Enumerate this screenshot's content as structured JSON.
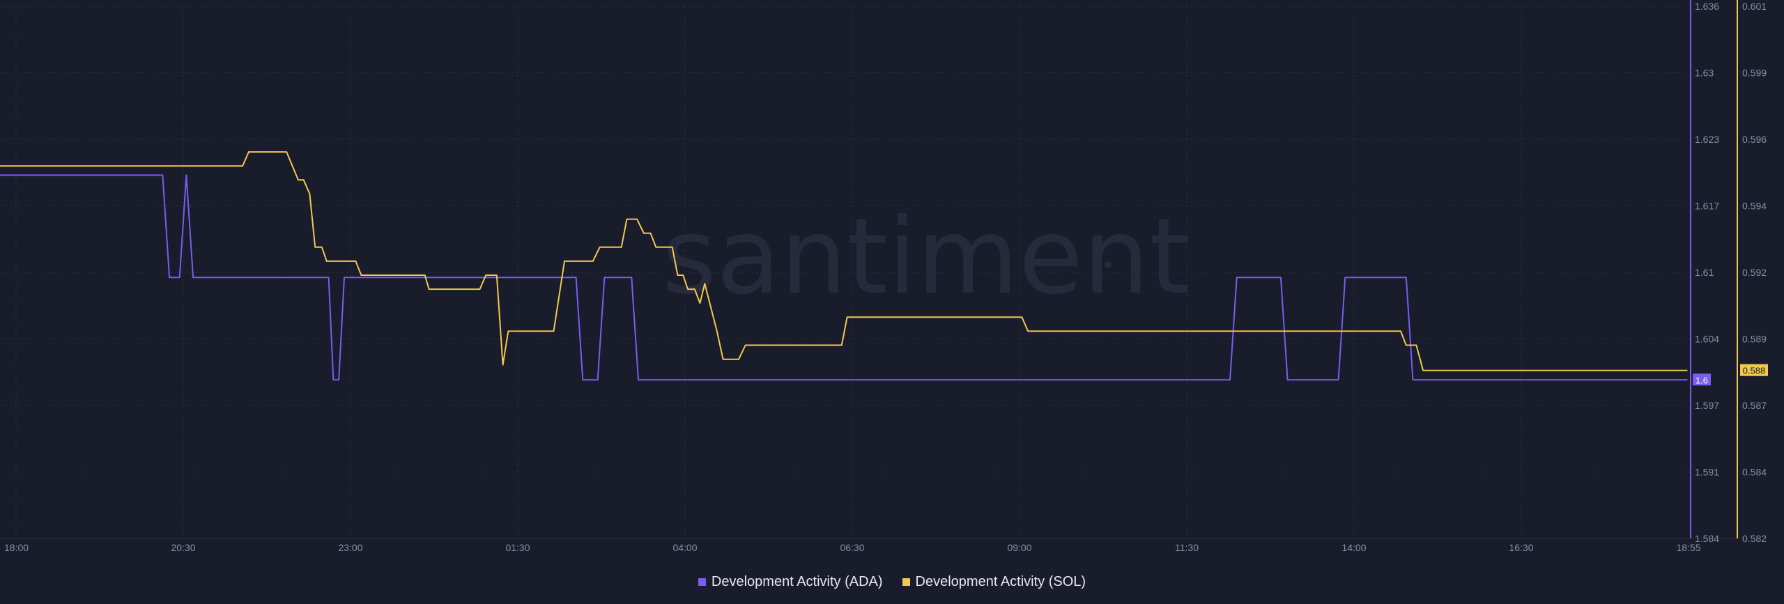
{
  "watermark": "santiment",
  "legend": {
    "ada_label": "Development Activity (ADA)",
    "sol_label": "Development Activity (SOL)"
  },
  "colors": {
    "background": "#191c2b",
    "ada": "#7b5cf0",
    "sol": "#f2c94c",
    "grid": "#2a2e40",
    "tick_text": "#8a8fa3"
  },
  "chart_data": {
    "type": "line",
    "x_ticks": [
      "18:00",
      "20:30",
      "23:00",
      "01:30",
      "04:00",
      "06:30",
      "09:00",
      "11:30",
      "14:00",
      "16:30",
      "18:55"
    ],
    "x_domain": [
      0,
      24.9167
    ],
    "x_unit": "hours",
    "y_left": {
      "ticks": [
        "1.636",
        "1.63",
        "1.623",
        "1.617",
        "1.61",
        "1.604",
        "1.597",
        "1.591",
        "1.584"
      ],
      "range": [
        1.584,
        1.636
      ]
    },
    "y_right": {
      "ticks": [
        "0.601",
        "0.599",
        "0.596",
        "0.594",
        "0.592",
        "0.589",
        "0.587",
        "0.584",
        "0.582"
      ],
      "range": [
        0.582,
        0.601
      ]
    },
    "grid": true,
    "legend_position": "bottom-center",
    "series": [
      {
        "name": "Development Activity (ADA)",
        "axis": "left",
        "last_value_label": "1.6",
        "points": [
          [
            0.0,
            1.6195
          ],
          [
            2.4,
            1.6195
          ],
          [
            2.5,
            1.6095
          ],
          [
            2.65,
            1.6095
          ],
          [
            2.75,
            1.6195
          ],
          [
            2.85,
            1.6095
          ],
          [
            4.85,
            1.6095
          ],
          [
            4.92,
            1.5995
          ],
          [
            5.0,
            1.5995
          ],
          [
            5.08,
            1.6095
          ],
          [
            8.5,
            1.6095
          ],
          [
            8.6,
            1.5995
          ],
          [
            8.82,
            1.5995
          ],
          [
            8.92,
            1.6095
          ],
          [
            9.32,
            1.6095
          ],
          [
            9.42,
            1.5995
          ],
          [
            18.15,
            1.5995
          ],
          [
            18.25,
            1.6095
          ],
          [
            18.9,
            1.6095
          ],
          [
            19.0,
            1.5995
          ],
          [
            19.75,
            1.5995
          ],
          [
            19.85,
            1.6095
          ],
          [
            20.75,
            1.6095
          ],
          [
            20.85,
            1.5995
          ],
          [
            24.9,
            1.5995
          ]
        ]
      },
      {
        "name": "Development Activity (SOL)",
        "axis": "right",
        "last_value_label": "0.588",
        "points": [
          [
            0.0,
            0.5953
          ],
          [
            3.58,
            0.5953
          ],
          [
            3.67,
            0.5958
          ],
          [
            4.23,
            0.5958
          ],
          [
            4.4,
            0.5948
          ],
          [
            4.48,
            0.5948
          ],
          [
            4.57,
            0.5943
          ],
          [
            4.65,
            0.5924
          ],
          [
            4.75,
            0.5924
          ],
          [
            4.82,
            0.5919
          ],
          [
            5.25,
            0.5919
          ],
          [
            5.33,
            0.5914
          ],
          [
            6.27,
            0.5914
          ],
          [
            6.33,
            0.5909
          ],
          [
            7.08,
            0.5909
          ],
          [
            7.17,
            0.5914
          ],
          [
            7.33,
            0.5914
          ],
          [
            7.42,
            0.5882
          ],
          [
            7.5,
            0.5894
          ],
          [
            8.17,
            0.5894
          ],
          [
            8.33,
            0.5919
          ],
          [
            8.75,
            0.5919
          ],
          [
            8.85,
            0.5924
          ],
          [
            9.17,
            0.5924
          ],
          [
            9.25,
            0.5934
          ],
          [
            9.4,
            0.5934
          ],
          [
            9.5,
            0.5929
          ],
          [
            9.6,
            0.5929
          ],
          [
            9.68,
            0.5924
          ],
          [
            9.92,
            0.5924
          ],
          [
            10.0,
            0.5914
          ],
          [
            10.08,
            0.5914
          ],
          [
            10.15,
            0.5909
          ],
          [
            10.25,
            0.5909
          ],
          [
            10.33,
            0.5904
          ],
          [
            10.4,
            0.5911
          ],
          [
            10.58,
            0.5894
          ],
          [
            10.67,
            0.5884
          ],
          [
            10.9,
            0.5884
          ],
          [
            11.0,
            0.5889
          ],
          [
            12.42,
            0.5889
          ],
          [
            12.5,
            0.5899
          ],
          [
            15.08,
            0.5899
          ],
          [
            15.17,
            0.5894
          ],
          [
            20.67,
            0.5894
          ],
          [
            20.75,
            0.5889
          ],
          [
            20.9,
            0.5889
          ],
          [
            21.0,
            0.588
          ],
          [
            24.9,
            0.588
          ]
        ]
      }
    ]
  }
}
